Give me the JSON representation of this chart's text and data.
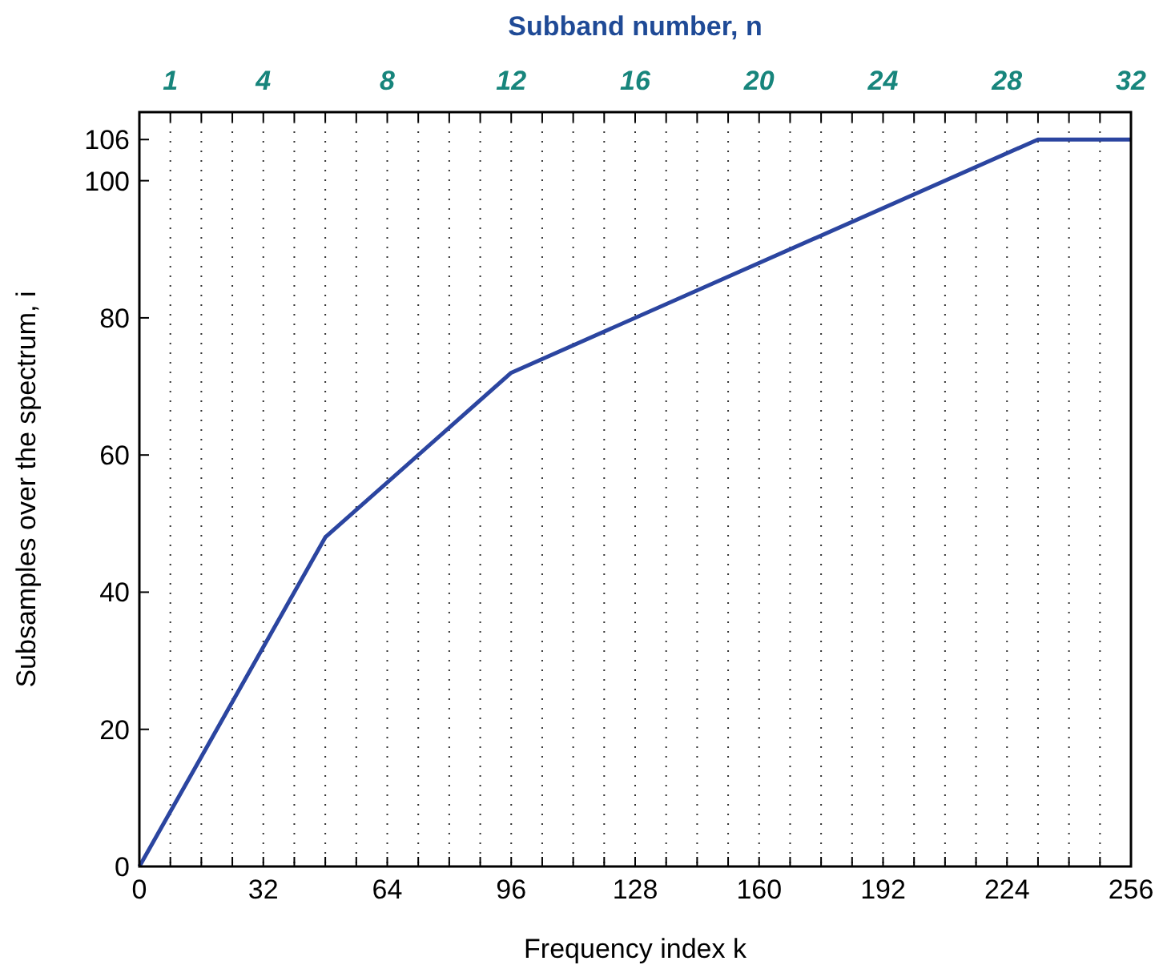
{
  "chart_data": {
    "type": "line",
    "xlabel": "Frequency index k",
    "ylabel": "Subsamples over the spectrum, i",
    "x2label": "Subband number, n",
    "xlim": [
      0,
      256
    ],
    "xticks": [
      0,
      {
        "value": 8,
        "label": null
      },
      {
        "value": 16,
        "label": null
      },
      {
        "value": 24,
        "label": null
      },
      32,
      {
        "value": 40,
        "label": null
      },
      {
        "value": 48,
        "label": null
      },
      {
        "value": 56,
        "label": null
      },
      64,
      {
        "value": 72,
        "label": null
      },
      {
        "value": 80,
        "label": null
      },
      {
        "value": 88,
        "label": null
      },
      96,
      {
        "value": 104,
        "label": null
      },
      {
        "value": 112,
        "label": null
      },
      {
        "value": 120,
        "label": null
      },
      128,
      {
        "value": 136,
        "label": null
      },
      {
        "value": 144,
        "label": null
      },
      {
        "value": 152,
        "label": null
      },
      160,
      {
        "value": 168,
        "label": null
      },
      {
        "value": 176,
        "label": null
      },
      {
        "value": 184,
        "label": null
      },
      192,
      {
        "value": 200,
        "label": null
      },
      {
        "value": 208,
        "label": null
      },
      {
        "value": 216,
        "label": null
      },
      224,
      {
        "value": 232,
        "label": null
      },
      {
        "value": 240,
        "label": null
      },
      {
        "value": 248,
        "label": null
      },
      256
    ],
    "x2lim": [
      0,
      32
    ],
    "x2ticks": [
      1,
      4,
      8,
      12,
      16,
      20,
      24,
      28,
      32
    ],
    "ylim": [
      0,
      110
    ],
    "yticks": [
      0,
      20,
      40,
      60,
      80,
      100,
      106
    ],
    "grid": "x",
    "x": [
      0,
      48,
      96,
      232,
      256
    ],
    "series": [
      {
        "color": "#2b45a0",
        "values": [
          0,
          48,
          72,
          106,
          106
        ]
      }
    ]
  }
}
